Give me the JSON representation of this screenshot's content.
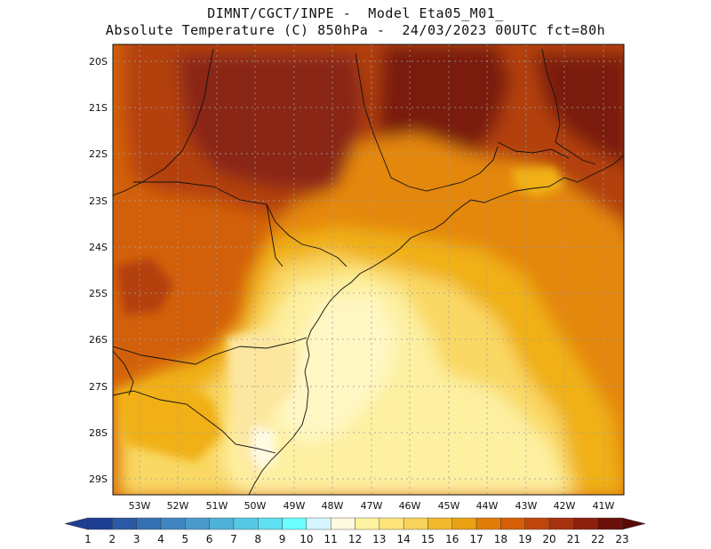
{
  "header": {
    "line1": "DIMNT/CGCT/INPE -  Model Eta05_M01_",
    "line2": "Absolute Temperature (C) 850hPa -  24/03/2023 00UTC fct=80h"
  },
  "map": {
    "lat_labels": [
      "20S",
      "21S",
      "22S",
      "23S",
      "24S",
      "25S",
      "26S",
      "27S",
      "28S",
      "29S"
    ],
    "lon_labels": [
      "53W",
      "52W",
      "51W",
      "50W",
      "49W",
      "48W",
      "47W",
      "46W",
      "45W",
      "44W",
      "43W",
      "42W",
      "41W"
    ]
  },
  "colorbar": {
    "labels": [
      "1",
      "2",
      "3",
      "4",
      "5",
      "6",
      "7",
      "8",
      "9",
      "10",
      "11",
      "12",
      "13",
      "14",
      "15",
      "16",
      "17",
      "18",
      "19",
      "20",
      "21",
      "22",
      "23"
    ],
    "colors": [
      "#1f3f95",
      "#1f3f95",
      "#2a5aa5",
      "#3570b3",
      "#3f86c0",
      "#4a9bcc",
      "#4fb3d9",
      "#56c8e6",
      "#5fe0f2",
      "#6cffff",
      "#d6f6ff",
      "#fff9e0",
      "#fff2a0",
      "#fde57c",
      "#f8d25a",
      "#f2b92f",
      "#eaa112",
      "#e07d06",
      "#d45f07",
      "#bf470c",
      "#a6330f",
      "#8c2110",
      "#6b1008",
      "#5a0a05"
    ]
  },
  "colors": {
    "deep_brown": "#7a1c10",
    "dark_orange": "#b3400e",
    "orange": "#d2600b",
    "light_orange": "#e4870c",
    "amber": "#f0b012",
    "yellow": "#f9d864",
    "pale_yellow": "#fdf0a0",
    "lightest": "#fff7c4"
  }
}
